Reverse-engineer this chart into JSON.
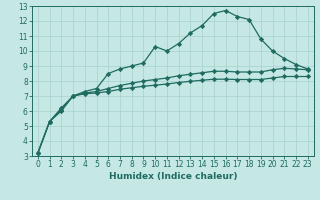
{
  "xlabel": "Humidex (Indice chaleur)",
  "xlim": [
    -0.5,
    23.5
  ],
  "ylim": [
    3,
    13
  ],
  "yticks": [
    3,
    4,
    5,
    6,
    7,
    8,
    9,
    10,
    11,
    12,
    13
  ],
  "xticks": [
    0,
    1,
    2,
    3,
    4,
    5,
    6,
    7,
    8,
    9,
    10,
    11,
    12,
    13,
    14,
    15,
    16,
    17,
    18,
    19,
    20,
    21,
    22,
    23
  ],
  "background_color": "#c5e8e5",
  "grid_color": "#a8d0cc",
  "line_color": "#1f6b60",
  "curve1_x": [
    0,
    1,
    2,
    3,
    4,
    5,
    6,
    7,
    8,
    9,
    10,
    11,
    12,
    13,
    14,
    15,
    16,
    17,
    18,
    19,
    20,
    21,
    22,
    23
  ],
  "curve1_y": [
    3.2,
    5.3,
    6.0,
    7.0,
    7.3,
    7.5,
    8.5,
    8.8,
    9.0,
    9.2,
    10.3,
    10.0,
    10.5,
    11.2,
    11.7,
    12.5,
    12.7,
    12.3,
    12.1,
    10.8,
    10.0,
    9.5,
    9.1,
    8.8
  ],
  "curve2_x": [
    0,
    1,
    2,
    3,
    4,
    5,
    6,
    7,
    8,
    9,
    10,
    11,
    12,
    13,
    14,
    15,
    16,
    17,
    18,
    19,
    20,
    21,
    22,
    23
  ],
  "curve2_y": [
    3.2,
    5.3,
    6.2,
    7.0,
    7.2,
    7.3,
    7.5,
    7.7,
    7.85,
    8.0,
    8.1,
    8.2,
    8.35,
    8.45,
    8.55,
    8.65,
    8.65,
    8.6,
    8.6,
    8.6,
    8.75,
    8.85,
    8.8,
    8.75
  ],
  "curve3_x": [
    0,
    1,
    2,
    3,
    4,
    5,
    6,
    7,
    8,
    9,
    10,
    11,
    12,
    13,
    14,
    15,
    16,
    17,
    18,
    19,
    20,
    21,
    22,
    23
  ],
  "curve3_y": [
    3.2,
    5.3,
    6.1,
    7.0,
    7.15,
    7.2,
    7.3,
    7.45,
    7.55,
    7.65,
    7.72,
    7.8,
    7.9,
    7.98,
    8.05,
    8.12,
    8.12,
    8.1,
    8.1,
    8.1,
    8.2,
    8.3,
    8.3,
    8.3
  ],
  "marker": "D",
  "markersize": 2.2,
  "linewidth": 0.9,
  "tick_fontsize": 5.5,
  "xlabel_fontsize": 6.5
}
